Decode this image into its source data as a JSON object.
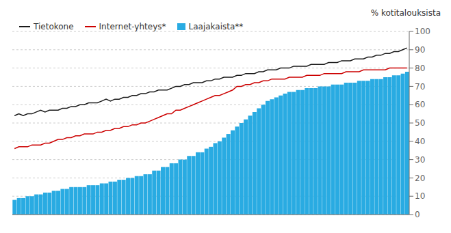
{
  "chart_data": {
    "type": "bar",
    "ylabel": "% kotitalouksista",
    "ylim": [
      0,
      100
    ],
    "yticks": [
      0,
      10,
      20,
      30,
      40,
      50,
      60,
      70,
      80,
      90,
      100
    ],
    "grid": true,
    "legend": "upper left",
    "tick_labels": "y",
    "categories": [
      null,
      null,
      null,
      null,
      null,
      null,
      null,
      null,
      null,
      null,
      null,
      null,
      null,
      null,
      null,
      null,
      null,
      null,
      null,
      null,
      null,
      null,
      null,
      null,
      null,
      null,
      null,
      null,
      null,
      null,
      null,
      null,
      null,
      null,
      null,
      null,
      null,
      null,
      null,
      null,
      null,
      null,
      null,
      null,
      null,
      null,
      null,
      null,
      null,
      null,
      null,
      null,
      null,
      null,
      null,
      null,
      null,
      null,
      null,
      null,
      null,
      null,
      null,
      null,
      null,
      null,
      null,
      null,
      null,
      null,
      null,
      null,
      null,
      null,
      null,
      null,
      null,
      null,
      null,
      null,
      null,
      null,
      null,
      null,
      null,
      null,
      null,
      null,
      null,
      null,
      null
    ],
    "series": [
      {
        "name": "Tietokone",
        "type": "line",
        "color": "#1a1a1a",
        "values": [
          54,
          55,
          54,
          55,
          55,
          56,
          57,
          56,
          57,
          57,
          57,
          58,
          58,
          59,
          59,
          60,
          60,
          61,
          61,
          61,
          62,
          63,
          62,
          63,
          63,
          64,
          64,
          65,
          65,
          66,
          66,
          67,
          67,
          68,
          68,
          68,
          69,
          70,
          70,
          71,
          71,
          72,
          72,
          72,
          73,
          73,
          74,
          74,
          75,
          75,
          75,
          76,
          76,
          77,
          77,
          77,
          78,
          78,
          79,
          79,
          79,
          80,
          80,
          80,
          81,
          81,
          81,
          81,
          82,
          82,
          82,
          82,
          83,
          83,
          83,
          84,
          84,
          84,
          85,
          85,
          85,
          86,
          86,
          87,
          87,
          88,
          88,
          89,
          89,
          90,
          91
        ]
      },
      {
        "name": "Internet-yhteys*",
        "type": "line",
        "color": "#cc0000",
        "values": [
          36,
          37,
          37,
          37,
          38,
          38,
          38,
          39,
          39,
          40,
          41,
          41,
          42,
          42,
          43,
          43,
          44,
          44,
          44,
          45,
          45,
          46,
          46,
          47,
          47,
          48,
          48,
          49,
          49,
          50,
          50,
          51,
          52,
          53,
          54,
          55,
          55,
          57,
          57,
          58,
          59,
          60,
          61,
          62,
          63,
          64,
          65,
          65,
          66,
          67,
          68,
          70,
          70,
          71,
          71,
          72,
          72,
          73,
          73,
          74,
          74,
          74,
          74,
          75,
          75,
          75,
          75,
          76,
          76,
          76,
          76,
          77,
          77,
          77,
          77,
          77,
          78,
          78,
          78,
          78,
          79,
          79,
          79,
          79,
          79,
          79,
          80,
          80,
          80,
          80,
          80
        ]
      },
      {
        "name": "Laajakaista**",
        "type": "bar",
        "color": "#29abe2",
        "values": [
          8,
          9,
          9,
          10,
          10,
          11,
          11,
          12,
          12,
          13,
          13,
          14,
          14,
          15,
          15,
          15,
          15,
          16,
          16,
          16,
          17,
          17,
          18,
          18,
          19,
          19,
          20,
          20,
          21,
          21,
          22,
          22,
          24,
          24,
          26,
          26,
          28,
          28,
          30,
          30,
          32,
          32,
          34,
          34,
          36,
          37,
          39,
          40,
          42,
          44,
          46,
          48,
          50,
          52,
          54,
          56,
          58,
          60,
          62,
          63,
          64,
          65,
          66,
          67,
          67,
          68,
          68,
          69,
          69,
          69,
          70,
          70,
          70,
          71,
          71,
          71,
          72,
          72,
          72,
          73,
          73,
          73,
          74,
          74,
          74,
          75,
          75,
          76,
          76,
          77,
          78
        ]
      }
    ]
  }
}
